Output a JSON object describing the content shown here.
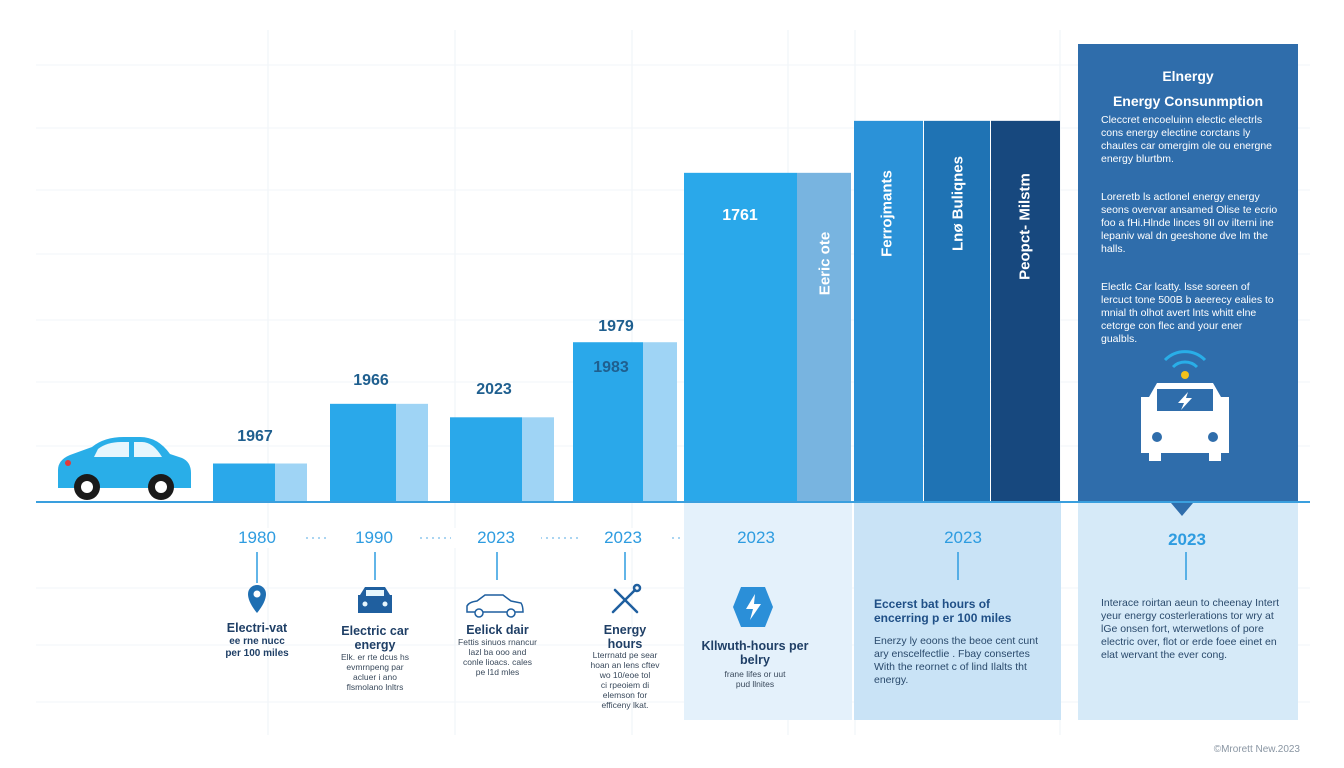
{
  "chart_data": {
    "type": "bar",
    "bars": [
      {
        "top_label": "1967",
        "value": 1.0,
        "light": true
      },
      {
        "top_label": "1966",
        "value": 2.55,
        "light": true
      },
      {
        "top_label": "2023",
        "value": 2.2,
        "light": true
      },
      {
        "top_label": "1979",
        "second_label": "1983",
        "value": 4.15,
        "light": true
      },
      {
        "top_label": "1761",
        "value": 8.55,
        "inside": true,
        "vertical_label": "Eeric ote"
      },
      {
        "value": 9.9,
        "vertical_label": "Ferrojmants"
      },
      {
        "value": 9.9,
        "vertical_label": "Lnø Buliqnes"
      },
      {
        "value": 9.9,
        "vertical_label": "Peopct- Milstm"
      }
    ],
    "timeline_years": [
      "1980",
      "1990",
      "2023",
      "2023",
      "2023",
      "2023",
      "2023"
    ]
  },
  "cards": [
    {
      "title": "Electri-vat",
      "body": [
        "ee rne nucc",
        "per 100 miles"
      ],
      "icon": "location-pin-icon"
    },
    {
      "title": "Electric car energy",
      "body": [
        "Elk. er rte dcus hs",
        "evmrnpeng par",
        "acluer i ano",
        "flsmolano lnltrs"
      ],
      "icon": "car-front-icon"
    },
    {
      "title": "Eelick dair",
      "body": [
        "Fettis sinuos rnancur",
        "lazl ba ooo and",
        "conle lioacs. cales",
        "pe l1d mles"
      ],
      "icon": "car-side-icon"
    },
    {
      "title": "Energy hours",
      "body": [
        "Lterrnatd pe sear",
        "hoan an lens cftev",
        "wo 10/eoe tol",
        "ci rpeoiem di",
        "elemson for",
        "efficeny lkat."
      ],
      "icon": "tools-icon"
    },
    {
      "title": "Kllwuth-hours per belry",
      "body": [
        "frane lifes or uut",
        "pud llnites"
      ],
      "icon": "lightning-badge-icon"
    }
  ],
  "panel_card": {
    "title": "Eccerst bat hours of encerring p er 100 miles",
    "body": "Enerzy ly eoons the beoe cent cunt ary enscelfectlie . Fbay consertes With the reornet c of lind Ilalts tht energy."
  },
  "right_panel": {
    "title_1": "Elnergy",
    "title_2": "Energy Consunmption",
    "paragraphs": [
      "Cleccret encoeluinn electic electrls cons energy electine corctans ly chautes car omergim ole ou energne energy blurtbm.",
      "Loreretb ls actlonel energy energy seons overvar ansamed Olise te ecrio foo a fHi.Hlnde linces 9II ov ilterni ine lepaniv wal dn geeshone dve lm the halls.",
      "Electlc Car lcatty. lsse soreen of lercuct tone 500B b aeerecy ealies to mnial th olhot avert lnts whitt elne cetcrge con flec and your ener gualbls."
    ],
    "year": "2023",
    "body": "Interace roirtan aeun to cheenay Intert yeur energy costerlerations tor wry at lGe onsen fort, wterwetlons of pore electric over, flot or erde foee einet en elat wervant the ever cong."
  },
  "footer": "©Mrorett New.2023",
  "colors": {
    "axis": "#3a9fde",
    "bar_main": "#2aa8ea",
    "bar_light": "#9fd4f5",
    "bar_mid": "#78b4e0",
    "bar_1": "#2b92d8",
    "bar_2": "#1f73b4",
    "bar_3": "#17487e",
    "panel": "#2f6dab",
    "car": "#29aee8"
  }
}
